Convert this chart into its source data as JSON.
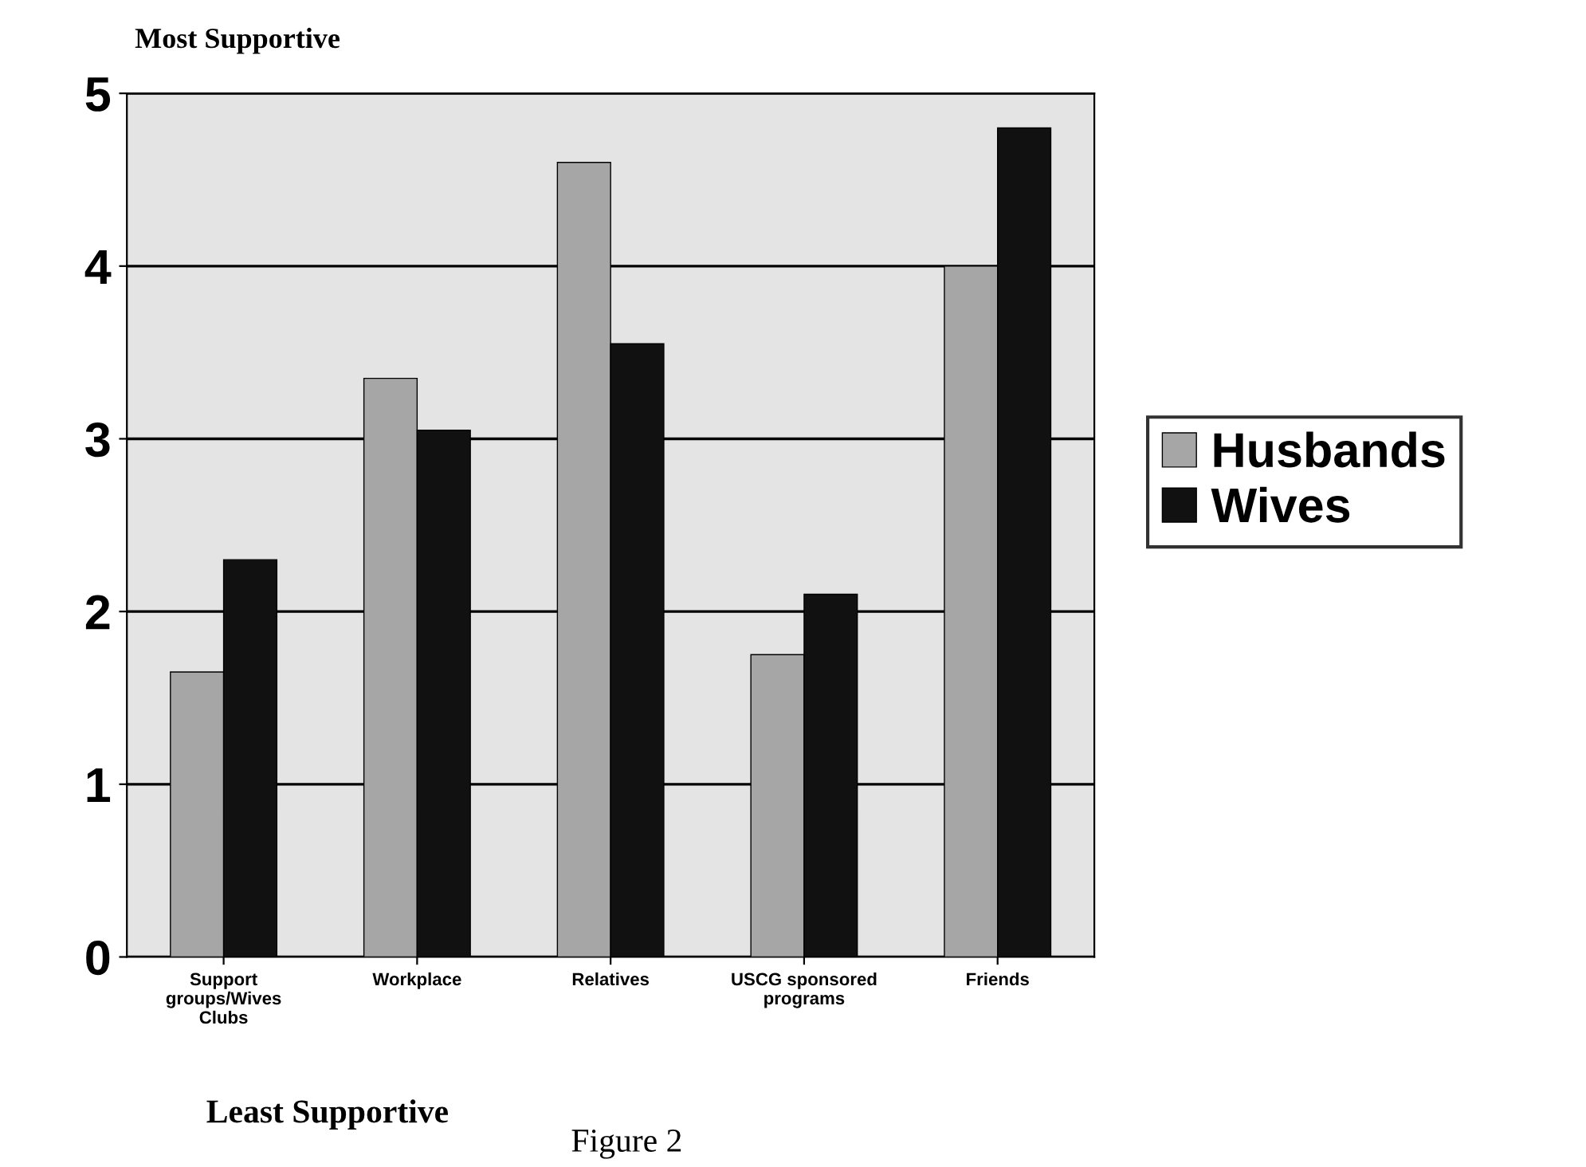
{
  "chart_data": {
    "type": "bar",
    "title": "Most Supportive",
    "categories": [
      "Support\ngroups/Wives\nClubs",
      "Workplace",
      "Relatives",
      "USCG sponsored\nprograms",
      "Friends"
    ],
    "series": [
      {
        "name": "Husbands",
        "color": "#a6a6a6",
        "values": [
          1.65,
          3.35,
          4.6,
          1.75,
          4.0
        ]
      },
      {
        "name": "Wives",
        "color": "#111111",
        "values": [
          2.3,
          3.05,
          3.55,
          2.1,
          4.8
        ]
      }
    ],
    "ylim": [
      0,
      5
    ],
    "yticks": [
      0,
      1,
      2,
      3,
      4,
      5
    ],
    "grid": "y",
    "legend": "right",
    "annotations": [
      "Least Supportive",
      "Figure 2"
    ]
  }
}
